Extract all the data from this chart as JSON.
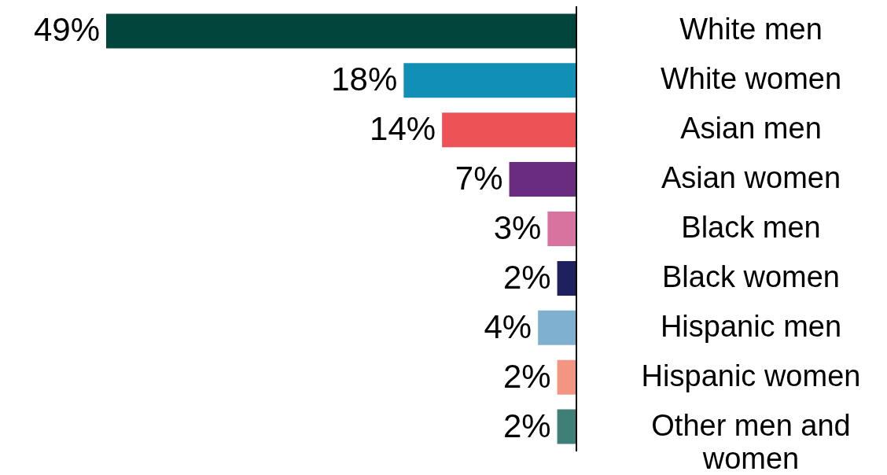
{
  "chart_data": {
    "type": "bar",
    "orientation": "horizontal",
    "categories": [
      "White men",
      "White women",
      "Asian men",
      "Asian women",
      "Black men",
      "Black women",
      "Hispanic men",
      "Hispanic women",
      "Other men and women"
    ],
    "values": [
      49,
      18,
      14,
      7,
      3,
      2,
      4,
      2,
      2
    ],
    "colors": [
      "#02453d",
      "#128fb5",
      "#ec5256",
      "#6a2c7e",
      "#d873a0",
      "#1f2060",
      "#7fb0cf",
      "#f29582",
      "#3f7f78"
    ],
    "value_labels": [
      "49%",
      "18%",
      "14%",
      "7%",
      "3%",
      "2%",
      "4%",
      "2%",
      "2%"
    ]
  }
}
